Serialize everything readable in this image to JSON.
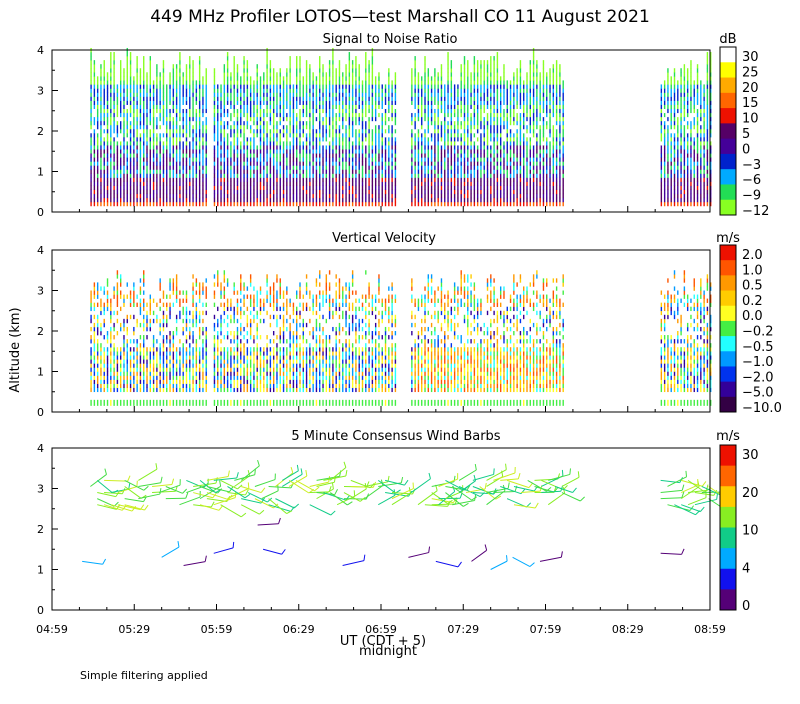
{
  "title": "449 MHz Profiler LOTOS—test Marshall CO 11 August 2021",
  "footnote": "Simple filtering applied",
  "y_axis_label": "Altitude (km)",
  "x_axis": {
    "label": "UT  (CDT + 5)",
    "sublabel": "midnight",
    "ticks": [
      "04:59",
      "05:29",
      "05:59",
      "06:29",
      "06:59",
      "07:29",
      "07:59",
      "08:29",
      "08:59"
    ]
  },
  "chart_data": [
    {
      "type": "heatmap",
      "title": "Signal to Noise Ratio",
      "ylabel": "Altitude (km)",
      "ylim": [
        0,
        4
      ],
      "yticks": [
        "0",
        "1",
        "2",
        "3",
        "4"
      ],
      "xrange": [
        "04:59",
        "08:59"
      ],
      "data_gaps": [
        [
          "06:54",
          "07:01"
        ],
        [
          "07:59",
          "08:29"
        ]
      ],
      "colorbar": {
        "unit": "dB",
        "labels": [
          "30",
          "25",
          "20",
          "15",
          "10",
          "5",
          "0",
          "−3",
          "−6",
          "−9",
          "−12"
        ],
        "colors": [
          "#ffffff",
          "#ffff00",
          "#ffaa00",
          "#ff6600",
          "#ee1100",
          "#550066",
          "#440099",
          "#0022cc",
          "#00aaff",
          "#22dd55",
          "#88ff22"
        ]
      }
    },
    {
      "type": "heatmap",
      "title": "Vertical Velocity",
      "ylabel": "Altitude (km)",
      "ylim": [
        0,
        4
      ],
      "yticks": [
        "0",
        "1",
        "2",
        "3",
        "4"
      ],
      "colorbar": {
        "unit": "m/s",
        "labels": [
          "2.0",
          "1.0",
          "0.5",
          "0.2",
          "0.0",
          "−0.2",
          "−0.5",
          "−1.0",
          "−2.0",
          "−5.0",
          "−10.0"
        ],
        "colors": [
          "#ee1100",
          "#ff5500",
          "#ff9900",
          "#ffcc00",
          "#ffff22",
          "#44ee44",
          "#22ffff",
          "#0099ff",
          "#0033ee",
          "#330099",
          "#330044"
        ]
      }
    },
    {
      "type": "scatter",
      "title": "5 Minute Consensus Wind Barbs",
      "ylabel": "Altitude (km)",
      "ylim": [
        0,
        4
      ],
      "yticks": [
        "0",
        "1",
        "2",
        "3",
        "4"
      ],
      "colorbar": {
        "unit": "m/s",
        "labels": [
          "30",
          "20",
          "10",
          "4",
          "0"
        ],
        "colors": [
          "#ee1100",
          "#ff6600",
          "#ffcc00",
          "#88ee22",
          "#11cc88",
          "#00aaff",
          "#1111ee",
          "#550077"
        ]
      }
    }
  ]
}
